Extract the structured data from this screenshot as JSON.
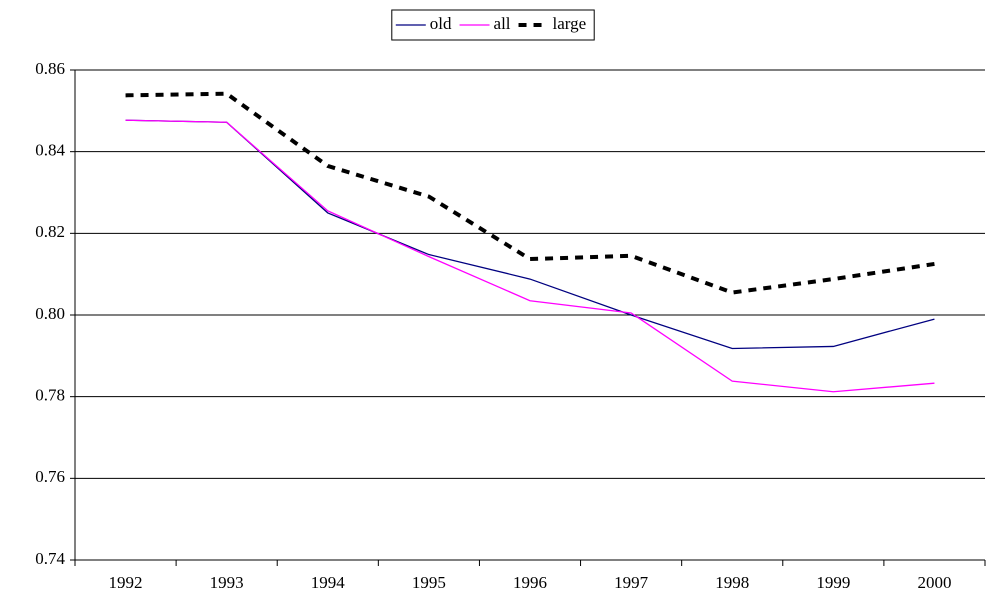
{
  "chart_data": {
    "type": "line",
    "categories": [
      "1992",
      "1993",
      "1994",
      "1995",
      "1996",
      "1997",
      "1998",
      "1999",
      "2000"
    ],
    "series": [
      {
        "name": "old",
        "color": "#000080",
        "style": "solid",
        "values": [
          0.8477,
          0.8472,
          0.825,
          0.8148,
          0.8088,
          0.8,
          0.7918,
          0.7923,
          0.799
        ]
      },
      {
        "name": "all",
        "color": "#ff00ff",
        "style": "solid",
        "values": [
          0.8477,
          0.8472,
          0.8255,
          0.8143,
          0.8035,
          0.8005,
          0.7838,
          0.7812,
          0.7833
        ]
      },
      {
        "name": "large",
        "color": "#000000",
        "style": "dashed",
        "values": [
          0.8538,
          0.8542,
          0.8365,
          0.829,
          0.8137,
          0.8145,
          0.8055,
          0.8088,
          0.8125
        ]
      }
    ],
    "ylim": [
      0.74,
      0.86
    ],
    "yticks": [
      0.74,
      0.76,
      0.78,
      {
        "value": 0.8,
        "label": "0.80"
      },
      0.82,
      0.84,
      0.86
    ],
    "grid": true,
    "legend": "top"
  }
}
